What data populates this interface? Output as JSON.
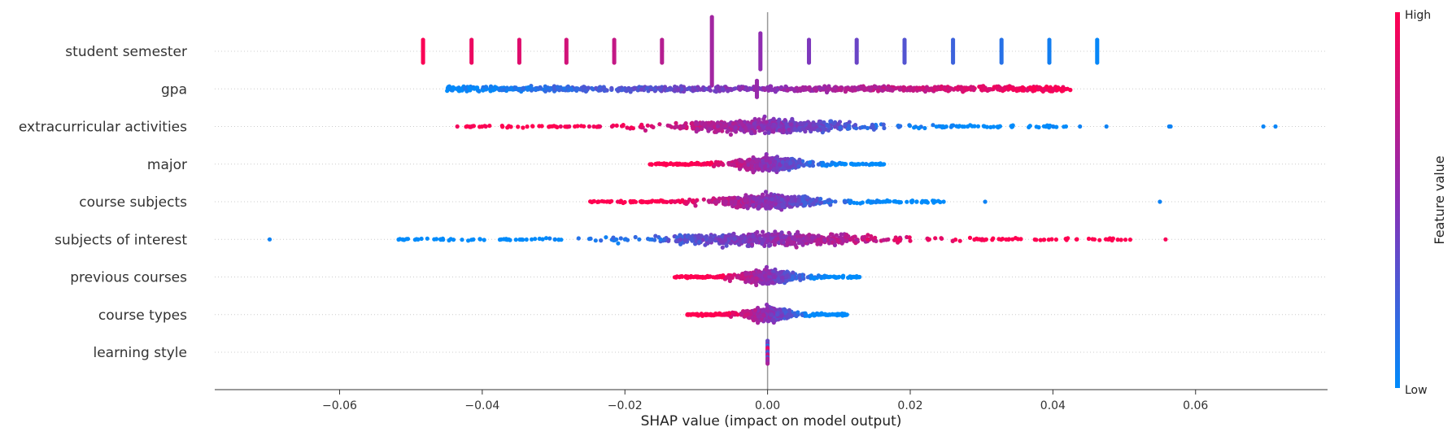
{
  "chart_data": {
    "type": "scatter",
    "subtype": "shap-beeswarm",
    "xlabel": "SHAP value (impact on model output)",
    "xlim": [
      -0.0775,
      0.0785
    ],
    "xticks": [
      -0.06,
      -0.04,
      -0.02,
      0.0,
      0.02,
      0.04,
      0.06
    ],
    "xtick_labels": [
      "−0.06",
      "−0.04",
      "−0.02",
      "0.00",
      "0.02",
      "0.04",
      "0.06"
    ],
    "zero_line": 0.0,
    "grid": "dotted horizontal row guides",
    "colorbar": {
      "title": "Feature value",
      "high_label": "High",
      "low_label": "Low",
      "low_color": "#008bfb",
      "mid_color": "#8b2fb5",
      "high_color": "#ff0051"
    },
    "features": [
      {
        "name": "student semester",
        "range": [
          -0.0485,
          0.0462
        ],
        "shape": "discrete-bars",
        "levels": [
          [
            -0.0483,
            0.98
          ],
          [
            -0.0415,
            0.92
          ],
          [
            -0.0348,
            0.86
          ],
          [
            -0.0282,
            0.8
          ],
          [
            -0.0215,
            0.74
          ],
          [
            -0.0148,
            0.68
          ],
          [
            -0.0078,
            0.6
          ],
          [
            -0.001,
            0.52
          ],
          [
            0.0058,
            0.45
          ],
          [
            0.0125,
            0.38
          ],
          [
            0.0192,
            0.3
          ],
          [
            0.026,
            0.22
          ],
          [
            0.0328,
            0.14
          ],
          [
            0.0395,
            0.07
          ],
          [
            0.0462,
            0.02
          ]
        ]
      },
      {
        "name": "gpa",
        "range": [
          -0.045,
          0.0425
        ],
        "shape": "spread",
        "color_trend": "low-to-high"
      },
      {
        "name": "extracurricular activities",
        "range": [
          -0.0435,
          0.0712
        ],
        "shape": "centered",
        "color_trend": "high-to-low",
        "outliers": [
          [
            -0.0435,
            0.95
          ],
          [
            -0.0415,
            0.95
          ],
          [
            -0.0395,
            0.95
          ],
          [
            -0.029,
            0.9
          ],
          [
            -0.0278,
            0.9
          ],
          [
            -0.025,
            0.9
          ],
          [
            -0.0235,
            0.9
          ],
          [
            -0.0218,
            0.9
          ],
          [
            0.04,
            0.05
          ],
          [
            0.0438,
            0.05
          ],
          [
            0.0475,
            0.05
          ],
          [
            0.0563,
            0.05
          ],
          [
            0.0565,
            0.05
          ],
          [
            0.0695,
            0.03
          ],
          [
            0.0712,
            0.03
          ]
        ]
      },
      {
        "name": "major",
        "range": [
          -0.01,
          0.0138
        ],
        "shape": "centered",
        "color_trend": "high-to-low",
        "outliers": [
          [
            -0.01,
            0.95
          ],
          [
            0.009,
            0.05
          ],
          [
            0.0138,
            0.05
          ]
        ]
      },
      {
        "name": "course subjects",
        "range": [
          -0.021,
          0.055
        ],
        "shape": "centered",
        "color_trend": "high-to-low",
        "outliers": [
          [
            -0.021,
            0.95
          ],
          [
            -0.013,
            0.9
          ],
          [
            -0.0115,
            0.9
          ],
          [
            -0.0105,
            0.9
          ],
          [
            0.0148,
            0.05
          ],
          [
            0.0155,
            0.05
          ],
          [
            0.0305,
            0.05
          ],
          [
            0.055,
            0.05
          ]
        ]
      },
      {
        "name": "subjects of interest",
        "range": [
          -0.0698,
          0.0558
        ],
        "shape": "centered",
        "color_trend": "low-to-high",
        "outliers": [
          [
            -0.0698,
            0.05
          ],
          [
            -0.0298,
            0.05
          ],
          [
            -0.0212,
            0.1
          ],
          [
            -0.02,
            0.1
          ],
          [
            -0.018,
            0.1
          ],
          [
            -0.0165,
            0.1
          ],
          [
            -0.015,
            0.1
          ],
          [
            0.014,
            0.9
          ],
          [
            0.0185,
            0.95
          ],
          [
            0.0558,
            0.97
          ]
        ]
      },
      {
        "name": "previous courses",
        "range": [
          -0.0055,
          0.0055
        ],
        "shape": "centered",
        "color_trend": "high-to-low"
      },
      {
        "name": "course types",
        "range": [
          -0.0058,
          0.0032
        ],
        "shape": "centered",
        "color_trend": "high-to-low",
        "outliers": [
          [
            -0.0058,
            0.95
          ],
          [
            -0.0042,
            0.95
          ]
        ]
      },
      {
        "name": "learning style",
        "range": [
          -0.0002,
          0.0002
        ],
        "shape": "vertical-stack"
      }
    ]
  }
}
